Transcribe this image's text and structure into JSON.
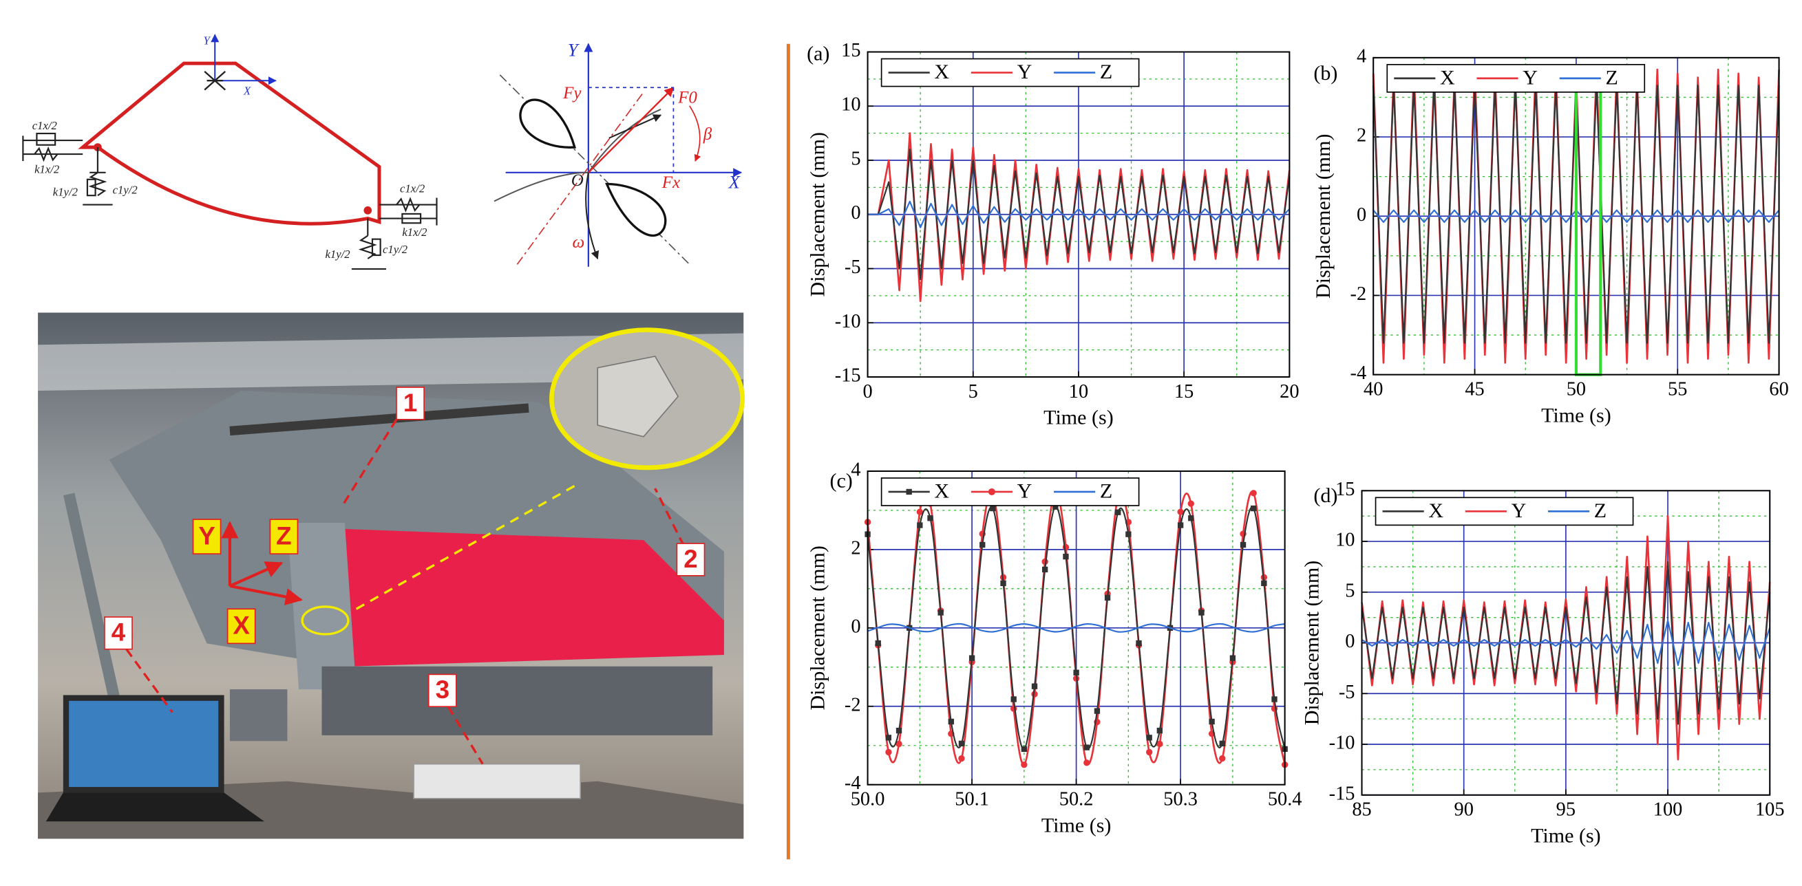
{
  "diagram": {
    "model_labels": [
      "Y",
      "X",
      "c1x/2",
      "k1x/2",
      "k1y/2",
      "c1y/2",
      "c1x/2",
      "k1x/2",
      "k1y/2",
      "c1y/2"
    ],
    "force_labels": [
      "Y",
      "X",
      "O",
      "Fy",
      "F0",
      "Fx",
      "β",
      "ω"
    ]
  },
  "photo": {
    "callouts": [
      "1",
      "2",
      "3",
      "4"
    ],
    "axes": [
      "Y",
      "Z",
      "X"
    ]
  },
  "chart_data": [
    {
      "type": "line",
      "panel_label": "(a)",
      "xlabel": "Time (s)",
      "ylabel": "Displacement (mm)",
      "x": [
        0,
        0.5,
        1,
        1.5,
        2,
        2.5,
        3,
        3.5,
        4,
        4.5,
        5,
        5.5,
        6,
        6.5,
        7,
        7.5,
        8,
        8.5,
        9,
        9.5,
        10,
        10.5,
        11,
        11.5,
        12,
        12.5,
        13,
        13.5,
        14,
        14.5,
        15,
        15.5,
        16,
        16.5,
        17,
        17.5,
        18,
        18.5,
        19,
        19.5,
        20
      ],
      "series": [
        {
          "name": "X",
          "color": "#333333",
          "values": [
            0,
            0,
            3,
            -5,
            6,
            -6,
            5,
            -5,
            5,
            -4.5,
            5,
            -4.5,
            4.5,
            -4,
            4,
            -4,
            3.8,
            -3.8,
            3.5,
            -3.6,
            3.5,
            -3.5,
            3.6,
            -3.5,
            3.5,
            -3.6,
            3.5,
            -3.5,
            3.6,
            -3.5,
            3.5,
            -3.6,
            3.5,
            -3.5,
            3.6,
            -3.5,
            3.5,
            -3.6,
            3.5,
            -3.5,
            3.5
          ]
        },
        {
          "name": "Y",
          "color": "#e8333a",
          "values": [
            0,
            0,
            5,
            -7,
            7.5,
            -8,
            6.5,
            -6.5,
            6,
            -6,
            6.2,
            -5.5,
            5.5,
            -5.2,
            5,
            -5,
            4.6,
            -4.6,
            4.3,
            -4.4,
            4.2,
            -4.3,
            4.1,
            -4.2,
            4.2,
            -4.1,
            4.1,
            -4.3,
            4.2,
            -4.1,
            4,
            -4.2,
            4.1,
            -4.1,
            4.2,
            -4,
            4.1,
            -4.2,
            4,
            -4.1,
            4.1
          ]
        },
        {
          "name": "Z",
          "color": "#2f6fd6",
          "values": [
            0,
            0,
            0.5,
            -1,
            1.2,
            -1.2,
            1,
            -1,
            0.9,
            -0.9,
            0.8,
            -0.8,
            0.7,
            -0.7,
            0.5,
            -0.5,
            0.5,
            -0.5,
            0.5,
            -0.5,
            0.5,
            -0.5,
            0.5,
            -0.5,
            0.5,
            -0.5,
            0.5,
            -0.5,
            0.5,
            -0.5,
            0.5,
            -0.5,
            0.5,
            -0.5,
            0.5,
            -0.5,
            0.5,
            -0.5,
            0.5,
            -0.5,
            0.5
          ]
        }
      ],
      "xlim": [
        0,
        20
      ],
      "ylim": [
        -15,
        15
      ],
      "xticks": [
        0,
        5,
        10,
        15,
        20
      ],
      "yticks": [
        -15,
        -10,
        -5,
        0,
        5,
        10,
        15
      ],
      "minor_xticks": [
        2.5,
        7.5,
        12.5,
        17.5
      ],
      "minor_yticks": [
        -12.5,
        -7.5,
        -2.5,
        2.5,
        7.5,
        12.5
      ],
      "grid": true,
      "legend": "top-left"
    },
    {
      "type": "line",
      "panel_label": "(b)",
      "xlabel": "Time (s)",
      "ylabel": "Displacement (mm)",
      "x": [
        40,
        40.5,
        41,
        41.5,
        42,
        42.5,
        43,
        43.5,
        44,
        44.5,
        45,
        45.5,
        46,
        46.5,
        47,
        47.5,
        48,
        48.5,
        49,
        49.5,
        50,
        50.5,
        51,
        51.5,
        52,
        52.5,
        53,
        53.5,
        54,
        54.5,
        55,
        55.5,
        56,
        56.5,
        57,
        57.5,
        58,
        58.5,
        59,
        59.5,
        60
      ],
      "series": [
        {
          "name": "X",
          "color": "#333333",
          "values": [
            3.3,
            -3.2,
            3.3,
            -3.2,
            3.3,
            -3.2,
            3.3,
            -3.2,
            3.3,
            -3.2,
            3.3,
            -3.2,
            3.3,
            -3.2,
            3.3,
            -3.2,
            3.3,
            -3.2,
            3.3,
            -3.2,
            3.3,
            -3.2,
            3.3,
            -3.2,
            3.3,
            -3.2,
            3.3,
            -3.2,
            3.3,
            -3.2,
            3.3,
            -3.2,
            3.3,
            -3.2,
            3.3,
            -3.2,
            3.3,
            -3.2,
            3.3,
            -3.2,
            3.3
          ]
        },
        {
          "name": "Y",
          "color": "#e8333a",
          "values": [
            3.6,
            -3.7,
            3.5,
            -3.6,
            3.7,
            -3.5,
            3.6,
            -3.7,
            3.5,
            -3.6,
            3.7,
            -3.5,
            3.6,
            -3.7,
            3.5,
            -3.6,
            3.7,
            -3.5,
            3.6,
            -3.7,
            3.5,
            -3.6,
            3.7,
            -3.5,
            3.6,
            -3.7,
            3.5,
            -3.6,
            3.7,
            -3.5,
            3.6,
            -3.7,
            3.5,
            -3.6,
            3.7,
            -3.5,
            3.6,
            -3.7,
            3.5,
            -3.6,
            3.7
          ]
        },
        {
          "name": "Z",
          "color": "#2f6fd6",
          "values": [
            0.15,
            -0.15,
            0.15,
            -0.15,
            0.15,
            -0.15,
            0.15,
            -0.15,
            0.15,
            -0.15,
            0.15,
            -0.15,
            0.15,
            -0.15,
            0.15,
            -0.15,
            0.15,
            -0.15,
            0.15,
            -0.15,
            0.15,
            -0.15,
            0.15,
            -0.15,
            0.15,
            -0.15,
            0.15,
            -0.15,
            0.15,
            -0.15,
            0.15,
            -0.15,
            0.15,
            -0.15,
            0.15,
            -0.15,
            0.15,
            -0.15,
            0.15,
            -0.15,
            0.15
          ]
        }
      ],
      "xlim": [
        40,
        60
      ],
      "ylim": [
        -4,
        4
      ],
      "xticks": [
        40,
        45,
        50,
        55,
        60
      ],
      "yticks": [
        -4,
        -2,
        0,
        2,
        4
      ],
      "minor_xticks": [
        42.5,
        47.5,
        52.5,
        57.5
      ],
      "minor_yticks": [
        -3,
        -1,
        1,
        3
      ],
      "highlight": {
        "xlim": [
          50,
          51.2
        ],
        "ylim": [
          -4,
          3.8
        ],
        "color": "#33dd33"
      },
      "grid": true,
      "legend": "top-left"
    },
    {
      "type": "line",
      "panel_label": "(c)",
      "xlabel": "Time (s)",
      "ylabel": "Displacement (mm)",
      "x": [
        50,
        50.01,
        50.02,
        50.03,
        50.04,
        50.05,
        50.06,
        50.07,
        50.08,
        50.09,
        50.1,
        50.11,
        50.12,
        50.13,
        50.14,
        50.15,
        50.16,
        50.17,
        50.18,
        50.19,
        50.2,
        50.21,
        50.22,
        50.23,
        50.24,
        50.25,
        50.26,
        50.27,
        50.28,
        50.29,
        50.3,
        50.31,
        50.32,
        50.33,
        50.34,
        50.35,
        50.36,
        50.37,
        50.38,
        50.39,
        50.4
      ],
      "series": [
        {
          "name": "X",
          "color": "#333333",
          "marker": "square",
          "values": [
            2.39,
            -0.39,
            -2.8,
            -2.62,
            0,
            2.62,
            2.8,
            0.39,
            -2.39,
            -2.95,
            -0.77,
            2.12,
            3.05,
            1.14,
            -1.82,
            -3.09,
            -1.49,
            1.49,
            3.09,
            1.82,
            -1.14,
            -3.05,
            -2.12,
            0.77,
            2.95,
            2.39,
            -0.39,
            -2.8,
            -2.62,
            0,
            2.62,
            2.8,
            0.39,
            -2.39,
            -2.95,
            -0.77,
            2.12,
            3.05,
            1.14,
            -1.82,
            -3.09
          ]
        },
        {
          "name": "Y",
          "color": "#e8333a",
          "marker": "circle",
          "values": [
            2.7,
            -0.44,
            -3.17,
            -2.96,
            0,
            2.96,
            3.17,
            0.44,
            -2.7,
            -3.33,
            -0.87,
            2.4,
            3.44,
            1.29,
            -2.06,
            -3.49,
            -1.69,
            1.69,
            3.49,
            2.06,
            -1.29,
            -3.44,
            -2.4,
            0.87,
            3.33,
            2.7,
            -0.44,
            -3.17,
            -2.96,
            0,
            2.96,
            3.17,
            0.44,
            -2.7,
            -3.33,
            -0.87,
            2.4,
            3.44,
            1.29,
            -2.06,
            -3.49
          ]
        },
        {
          "name": "Z",
          "color": "#2f6fd6",
          "values": [
            -0.08,
            0.01,
            0.09,
            0.08,
            0,
            -0.08,
            -0.09,
            -0.01,
            0.08,
            0.1,
            0.02,
            -0.07,
            -0.1,
            -0.04,
            0.06,
            0.1,
            0.05,
            -0.05,
            -0.1,
            -0.06,
            0.04,
            0.1,
            0.07,
            -0.02,
            -0.1,
            -0.08,
            0.01,
            0.09,
            0.08,
            0,
            -0.08,
            -0.09,
            -0.01,
            0.08,
            0.1,
            0.02,
            -0.07,
            -0.1,
            -0.04,
            0.06,
            0.1
          ]
        }
      ],
      "xlim": [
        50,
        50.4
      ],
      "ylim": [
        -4,
        4
      ],
      "xticks": [
        {
          "value": 50,
          "label": "50.0"
        },
        50.1,
        50.2,
        50.3,
        50.4
      ],
      "yticks": [
        -4,
        -2,
        0,
        2,
        4
      ],
      "minor_xticks": [
        50.05,
        50.15,
        50.25,
        50.35
      ],
      "minor_yticks": [
        -3,
        -1,
        1,
        3
      ],
      "smooth": true,
      "grid": true,
      "legend": "top-left"
    },
    {
      "type": "line",
      "panel_label": "(d)",
      "xlabel": "Time (s)",
      "ylabel": "Displacement (mm)",
      "x": [
        85,
        85.5,
        86,
        86.5,
        87,
        87.5,
        88,
        88.5,
        89,
        89.5,
        90,
        90.5,
        91,
        91.5,
        92,
        92.5,
        93,
        93.5,
        94,
        94.5,
        95,
        95.5,
        96,
        96.5,
        97,
        97.5,
        98,
        98.5,
        99,
        99.5,
        100,
        100.5,
        101,
        101.5,
        102,
        102.5,
        103,
        103.5,
        104,
        104.5,
        105
      ],
      "series": [
        {
          "name": "X",
          "color": "#333333",
          "values": [
            3.5,
            -3.5,
            3.5,
            -3.5,
            3.5,
            -3.5,
            3.5,
            -3.5,
            3.5,
            -3.5,
            3.5,
            -3.5,
            3.5,
            -3.5,
            3.5,
            -3.5,
            3.5,
            -3.5,
            3.5,
            -3.5,
            3.5,
            -4,
            4.5,
            -5,
            5.5,
            -6,
            6.5,
            -7,
            7.5,
            -7.5,
            8,
            -8,
            7,
            -7,
            6.5,
            -6.5,
            6.5,
            -6,
            6,
            -5.5,
            5
          ]
        },
        {
          "name": "Y",
          "color": "#e8333a",
          "values": [
            4,
            -4.2,
            4.1,
            -4,
            4.2,
            -4.1,
            4,
            -4.2,
            4.1,
            -4,
            4.2,
            -4.1,
            4,
            -4.2,
            4.1,
            -4,
            4.2,
            -4.1,
            4,
            -4.2,
            4.3,
            -4.8,
            5.5,
            -6,
            6.5,
            -7,
            8.5,
            -9,
            10.5,
            -10,
            12.5,
            -11.5,
            10,
            -9,
            8,
            -8.5,
            8.5,
            -8,
            8,
            -7.5,
            6
          ]
        },
        {
          "name": "Z",
          "color": "#2f6fd6",
          "values": [
            0.3,
            -0.3,
            0.3,
            -0.3,
            0.3,
            -0.3,
            0.3,
            -0.3,
            0.3,
            -0.3,
            0.3,
            -0.3,
            0.3,
            -0.3,
            0.3,
            -0.3,
            0.3,
            -0.3,
            0.3,
            -0.3,
            0.3,
            -0.4,
            0.5,
            -0.6,
            0.8,
            -1,
            1.2,
            -1.5,
            1.8,
            -2,
            2.2,
            -2.2,
            2,
            -2,
            2,
            -1.8,
            1.8,
            -1.7,
            1.7,
            -1.5,
            1.5
          ]
        }
      ],
      "xlim": [
        85,
        105
      ],
      "ylim": [
        -15,
        15
      ],
      "xticks": [
        85,
        90,
        95,
        100,
        105
      ],
      "yticks": [
        -15,
        -10,
        -5,
        0,
        5,
        10,
        15
      ],
      "minor_xticks": [
        87.5,
        92.5,
        97.5,
        102.5
      ],
      "minor_yticks": [
        -12.5,
        -7.5,
        -2.5,
        2.5,
        7.5,
        12.5
      ],
      "grid": true,
      "legend": "top-left"
    }
  ]
}
